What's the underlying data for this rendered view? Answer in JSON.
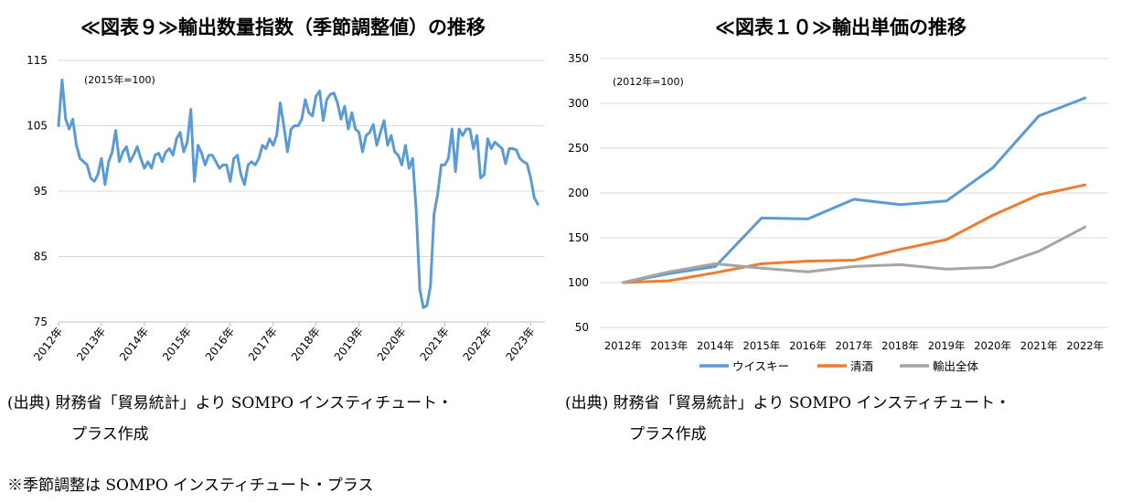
{
  "chart_data": [
    {
      "type": "line",
      "title": "≪図表９≫輸出数量指数（季節調整値）の推移",
      "annotation": "(2015年=100)",
      "ylim": [
        75,
        115
      ],
      "yticks": [
        75,
        85,
        95,
        105,
        115
      ],
      "grid": true,
      "x_start": "2012-01",
      "x_end": "2023-05",
      "xticks": [
        "2012年",
        "2013年",
        "2014年",
        "2015年",
        "2016年",
        "2017年",
        "2018年",
        "2019年",
        "2020年",
        "2021年",
        "2022年",
        "2023年"
      ],
      "series": [
        {
          "color": "#5b9bd5",
          "points": [
            [
              "2012-01",
              105.0
            ],
            [
              "2012-02",
              112.0
            ],
            [
              "2012-03",
              106.0
            ],
            [
              "2012-04",
              104.5
            ],
            [
              "2012-05",
              106.0
            ],
            [
              "2012-06",
              102.0
            ],
            [
              "2012-07",
              100.0
            ],
            [
              "2012-08",
              99.5
            ],
            [
              "2012-09",
              99.0
            ],
            [
              "2012-10",
              97.0
            ],
            [
              "2012-11",
              96.5
            ],
            [
              "2012-12",
              97.5
            ],
            [
              "2013-01",
              100.0
            ],
            [
              "2013-02",
              96.0
            ],
            [
              "2013-03",
              99.5
            ],
            [
              "2013-04",
              101.0
            ],
            [
              "2013-05",
              104.3
            ],
            [
              "2013-06",
              99.5
            ],
            [
              "2013-07",
              101.0
            ],
            [
              "2013-08",
              101.8
            ],
            [
              "2013-09",
              99.5
            ],
            [
              "2013-10",
              100.5
            ],
            [
              "2013-11",
              101.8
            ],
            [
              "2013-12",
              100.0
            ],
            [
              "2014-01",
              98.5
            ],
            [
              "2014-02",
              99.5
            ],
            [
              "2014-03",
              98.5
            ],
            [
              "2014-04",
              100.5
            ],
            [
              "2014-05",
              100.8
            ],
            [
              "2014-06",
              99.5
            ],
            [
              "2014-07",
              101.0
            ],
            [
              "2014-08",
              101.5
            ],
            [
              "2014-09",
              100.5
            ],
            [
              "2014-10",
              103.0
            ],
            [
              "2014-11",
              104.0
            ],
            [
              "2014-12",
              101.0
            ],
            [
              "2015-01",
              102.5
            ],
            [
              "2015-02",
              107.5
            ],
            [
              "2015-03",
              96.5
            ],
            [
              "2015-04",
              102.0
            ],
            [
              "2015-05",
              100.8
            ],
            [
              "2015-06",
              99.0
            ],
            [
              "2015-07",
              100.5
            ],
            [
              "2015-08",
              100.5
            ],
            [
              "2015-09",
              99.5
            ],
            [
              "2015-10",
              98.5
            ],
            [
              "2015-11",
              99.0
            ],
            [
              "2015-12",
              99.0
            ],
            [
              "2016-01",
              96.5
            ],
            [
              "2016-02",
              100.0
            ],
            [
              "2016-03",
              100.5
            ],
            [
              "2016-04",
              97.5
            ],
            [
              "2016-05",
              96.0
            ],
            [
              "2016-06",
              99.0
            ],
            [
              "2016-07",
              99.5
            ],
            [
              "2016-08",
              99.0
            ],
            [
              "2016-09",
              100.0
            ],
            [
              "2016-10",
              102.0
            ],
            [
              "2016-11",
              101.5
            ],
            [
              "2016-12",
              103.0
            ],
            [
              "2017-01",
              102.0
            ],
            [
              "2017-02",
              103.5
            ],
            [
              "2017-03",
              108.5
            ],
            [
              "2017-04",
              105.0
            ],
            [
              "2017-05",
              101.0
            ],
            [
              "2017-06",
              104.5
            ],
            [
              "2017-07",
              105.0
            ],
            [
              "2017-08",
              105.0
            ],
            [
              "2017-09",
              106.0
            ],
            [
              "2017-10",
              109.0
            ],
            [
              "2017-11",
              107.0
            ],
            [
              "2017-12",
              106.5
            ],
            [
              "2018-01",
              109.5
            ],
            [
              "2018-02",
              110.3
            ],
            [
              "2018-03",
              105.8
            ],
            [
              "2018-04",
              109.0
            ],
            [
              "2018-05",
              109.8
            ],
            [
              "2018-06",
              110.0
            ],
            [
              "2018-07",
              108.5
            ],
            [
              "2018-08",
              106.0
            ],
            [
              "2018-09",
              108.0
            ],
            [
              "2018-10",
              104.5
            ],
            [
              "2018-11",
              107.0
            ],
            [
              "2018-12",
              104.5
            ],
            [
              "2019-01",
              104.0
            ],
            [
              "2019-02",
              101.0
            ],
            [
              "2019-03",
              103.5
            ],
            [
              "2019-04",
              104.0
            ],
            [
              "2019-05",
              105.2
            ],
            [
              "2019-06",
              102.0
            ],
            [
              "2019-07",
              104.0
            ],
            [
              "2019-08",
              105.8
            ],
            [
              "2019-09",
              102.0
            ],
            [
              "2019-10",
              103.5
            ],
            [
              "2019-11",
              101.0
            ],
            [
              "2019-12",
              100.5
            ],
            [
              "2020-01",
              99.0
            ],
            [
              "2020-02",
              102.0
            ],
            [
              "2020-03",
              98.5
            ],
            [
              "2020-04",
              100.0
            ],
            [
              "2020-05",
              92.0
            ],
            [
              "2020-06",
              80.0
            ],
            [
              "2020-07",
              77.2
            ],
            [
              "2020-08",
              77.5
            ],
            [
              "2020-09",
              80.5
            ],
            [
              "2020-10",
              91.5
            ],
            [
              "2020-11",
              94.5
            ],
            [
              "2020-12",
              99.0
            ],
            [
              "2021-01",
              99.0
            ],
            [
              "2021-02",
              100.0
            ],
            [
              "2021-03",
              104.5
            ],
            [
              "2021-04",
              98.0
            ],
            [
              "2021-05",
              104.5
            ],
            [
              "2021-06",
              103.5
            ],
            [
              "2021-07",
              104.5
            ],
            [
              "2021-08",
              104.5
            ],
            [
              "2021-09",
              101.5
            ],
            [
              "2021-10",
              103.5
            ],
            [
              "2021-11",
              97.0
            ],
            [
              "2021-12",
              97.5
            ],
            [
              "2022-01",
              103.0
            ],
            [
              "2022-02",
              101.5
            ],
            [
              "2022-03",
              102.5
            ],
            [
              "2022-04",
              102.0
            ],
            [
              "2022-05",
              101.5
            ],
            [
              "2022-06",
              99.2
            ],
            [
              "2022-07",
              101.5
            ],
            [
              "2022-08",
              101.5
            ],
            [
              "2022-09",
              101.3
            ],
            [
              "2022-10",
              100.0
            ],
            [
              "2022-11",
              99.5
            ],
            [
              "2022-12",
              99.2
            ],
            [
              "2023-01",
              97.0
            ],
            [
              "2023-02",
              94.0
            ],
            [
              "2023-03",
              93.0
            ]
          ]
        }
      ]
    },
    {
      "type": "line",
      "title": "≪図表１０≫輸出単価の推移",
      "annotation": "(2012年=100)",
      "ylim": [
        50,
        350
      ],
      "yticks": [
        50,
        100,
        150,
        200,
        250,
        300,
        350
      ],
      "grid": true,
      "legend_position": "bottom",
      "categories": [
        "2012年",
        "2013年",
        "2014年",
        "2015年",
        "2016年",
        "2017年",
        "2018年",
        "2019年",
        "2020年",
        "2021年",
        "2022年"
      ],
      "series": [
        {
          "name": "ウイスキー",
          "color": "#5b9bd5",
          "values": [
            100,
            110,
            118,
            172,
            171,
            193,
            187,
            191,
            228,
            286,
            306
          ]
        },
        {
          "name": "清酒",
          "color": "#ed7d31",
          "values": [
            100,
            102,
            111,
            121,
            124,
            125,
            137,
            148,
            175,
            198,
            209
          ]
        },
        {
          "name": "輸出全体",
          "color": "#a5a5a5",
          "values": [
            100,
            112,
            121,
            116,
            112,
            118,
            120,
            115,
            117,
            135,
            162
          ]
        }
      ]
    }
  ],
  "captions": {
    "left_source_line1": "(出典) 財務省「貿易統計」より SOMPO インスティチュート・",
    "left_source_line2": "プラス作成",
    "left_note": "※季節調整は SOMPO インスティチュート・プラス",
    "right_source_line1": "(出典) 財務省「貿易統計」より SOMPO インスティチュート・",
    "right_source_line2": "プラス作成"
  }
}
